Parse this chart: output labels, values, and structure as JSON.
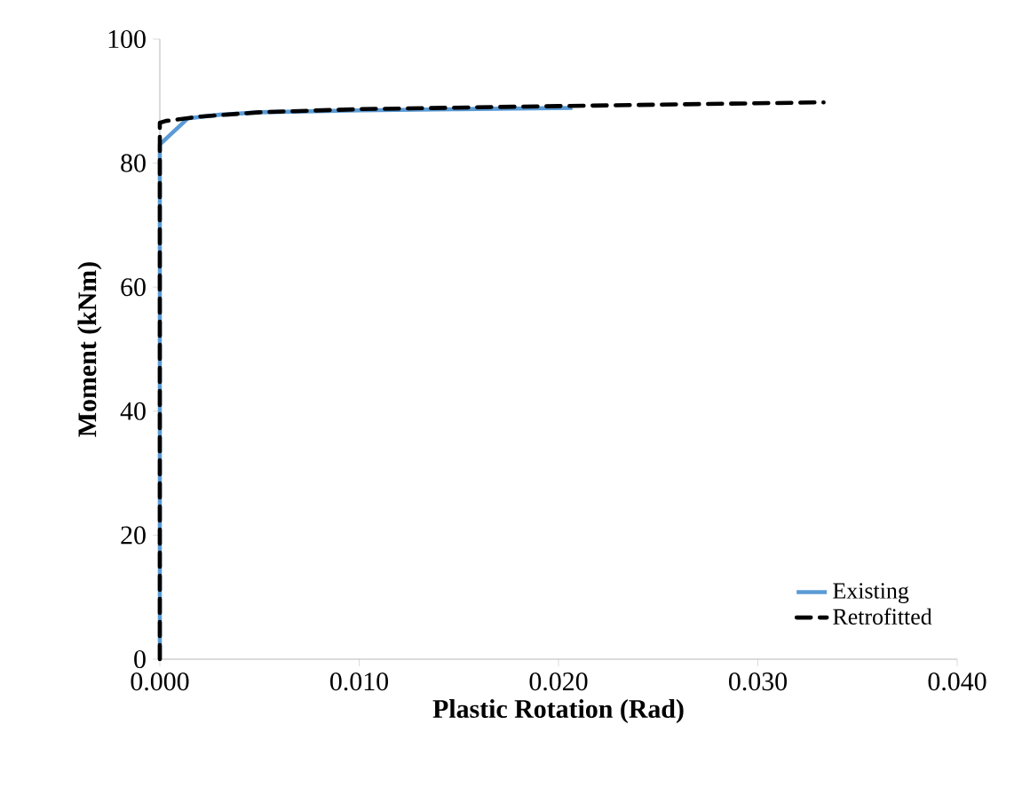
{
  "chart_data": {
    "type": "line",
    "xlabel": "Plastic Rotation (Rad)",
    "ylabel": "Moment (kNm)",
    "xlim": [
      0,
      0.04
    ],
    "ylim": [
      0,
      100
    ],
    "xticks": [
      {
        "value": 0,
        "label": "0.000"
      },
      {
        "value": 0.01,
        "label": "0.010"
      },
      {
        "value": 0.02,
        "label": "0.020"
      },
      {
        "value": 0.03,
        "label": "0.030"
      },
      {
        "value": 0.04,
        "label": "0.040"
      }
    ],
    "yticks": [
      0,
      20,
      40,
      60,
      80,
      100
    ],
    "grid": false,
    "legend": "bottom right",
    "marker": "none",
    "series": [
      {
        "name": "Existing",
        "color": "#5b9bd5",
        "line_style": "solid",
        "x": [
          0,
          0,
          0.0014,
          0.003,
          0.005,
          0.01,
          0.015,
          0.0207
        ],
        "values": [
          0,
          83,
          87.2,
          87.8,
          88.2,
          88.5,
          88.7,
          88.9
        ]
      },
      {
        "name": "Retrofitted",
        "color": "#000000",
        "line_style": "dashed",
        "x": [
          0,
          0,
          0.0003,
          0.002,
          0.005,
          0.01,
          0.02,
          0.0333
        ],
        "values": [
          0,
          86.5,
          86.8,
          87.5,
          88.2,
          88.7,
          89.2,
          89.8
        ]
      }
    ]
  }
}
